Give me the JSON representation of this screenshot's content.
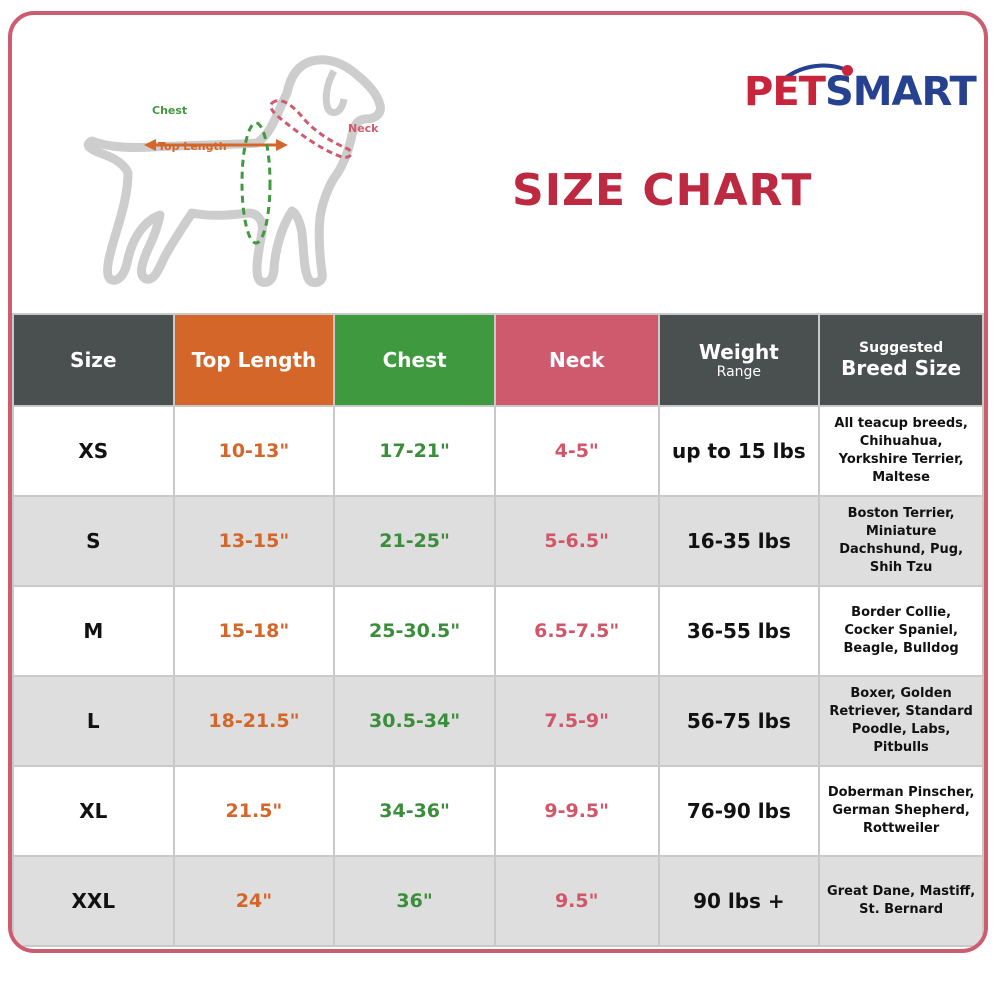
{
  "brand": {
    "pet": "PET",
    "smart": "SMART"
  },
  "title": "SIZE CHART",
  "diagram_labels": {
    "chest": "Chest",
    "top_length": "Top Length",
    "neck": "Neck"
  },
  "columns": {
    "size": "Size",
    "top_length": "Top Length",
    "chest": "Chest",
    "neck": "Neck",
    "weight_main": "Weight",
    "weight_sub": "Range",
    "breed_sub": "Suggested",
    "breed_main": "Breed Size"
  },
  "rows": [
    {
      "size": "XS",
      "top_length": "10-13\"",
      "chest": "17-21\"",
      "neck": "4-5\"",
      "weight": "up to 15 lbs",
      "breed": "All teacup breeds, Chihuahua, Yorkshire Terrier, Maltese"
    },
    {
      "size": "S",
      "top_length": "13-15\"",
      "chest": "21-25\"",
      "neck": "5-6.5\"",
      "weight": "16-35 lbs",
      "breed": "Boston Terrier, Miniature Dachshund, Pug, Shih Tzu"
    },
    {
      "size": "M",
      "top_length": "15-18\"",
      "chest": "25-30.5\"",
      "neck": "6.5-7.5\"",
      "weight": "36-55 lbs",
      "breed": "Border Collie, Cocker Spaniel, Beagle, Bulldog"
    },
    {
      "size": "L",
      "top_length": "18-21.5\"",
      "chest": "30.5-34\"",
      "neck": "7.5-9\"",
      "weight": "56-75 lbs",
      "breed": "Boxer, Golden Retriever, Standard Poodle, Labs, Pitbulls"
    },
    {
      "size": "XL",
      "top_length": "21.5\"",
      "chest": "34-36\"",
      "neck": "9-9.5\"",
      "weight": "76-90 lbs",
      "breed": "Doberman Pinscher, German Shepherd, Rottweiler"
    },
    {
      "size": "XXL",
      "top_length": "24\"",
      "chest": "36\"",
      "neck": "9.5\"",
      "weight": "90 lbs +",
      "breed": "Great Dane, Mastiff, St. Bernard"
    }
  ],
  "colors": {
    "frame": "#cc5c70",
    "title": "#bd2940",
    "header_dark": "#4a4f4f",
    "top_length": "#d4662a",
    "chest": "#3f9a3f",
    "neck": "#cf5a6e",
    "alt_row": "#dedede"
  }
}
